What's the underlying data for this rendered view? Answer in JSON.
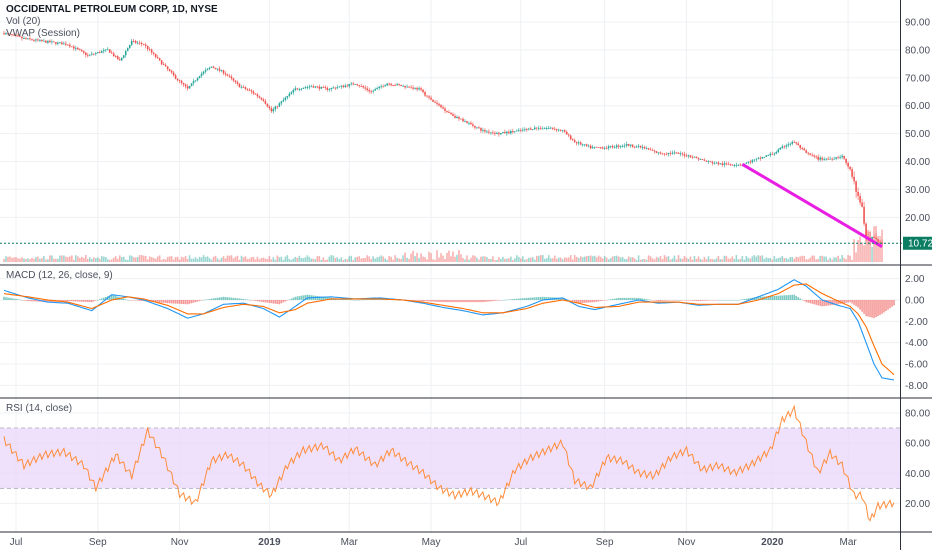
{
  "colors": {
    "up": "#26a69a",
    "down": "#ef5350",
    "macd": "#2196f3",
    "signal": "#ff6d00",
    "rsi": "#ff8c3a",
    "trendline": "#e91ee3",
    "rsi_band": "#ead7fb",
    "price_tag": "#0a7d63"
  },
  "chart_data": [
    {
      "type": "candlestick",
      "title": "OCCIDENTAL PETROLEUM CORP, 1D, NYSE",
      "indicators": [
        "Vol (20)",
        "VWAP (Session)"
      ],
      "y_ticks": [
        "90.00",
        "80.00",
        "70.00",
        "60.00",
        "50.00",
        "40.00",
        "30.00",
        "20.00"
      ],
      "ylim": [
        4,
        95
      ],
      "last_price": "10.72",
      "x_ticks": [
        "Jul",
        "Sep",
        "Nov",
        "2019",
        "Mar",
        "May",
        "Jul",
        "Sep",
        "Nov",
        "2020",
        "Mar"
      ],
      "x_tick_index": [
        6,
        47,
        88,
        133,
        173,
        214,
        259,
        301,
        342,
        385,
        423
      ],
      "n_days": 440,
      "close_anchors": [
        [
          0,
          86
        ],
        [
          10,
          84
        ],
        [
          20,
          83
        ],
        [
          32,
          82
        ],
        [
          42,
          78
        ],
        [
          52,
          80
        ],
        [
          58,
          76
        ],
        [
          64,
          83
        ],
        [
          70,
          82
        ],
        [
          78,
          76
        ],
        [
          86,
          70
        ],
        [
          92,
          66
        ],
        [
          98,
          71
        ],
        [
          104,
          74
        ],
        [
          110,
          72
        ],
        [
          118,
          67
        ],
        [
          124,
          65
        ],
        [
          130,
          62
        ],
        [
          134,
          58
        ],
        [
          140,
          62
        ],
        [
          146,
          66
        ],
        [
          154,
          67
        ],
        [
          162,
          66
        ],
        [
          170,
          67
        ],
        [
          176,
          68
        ],
        [
          184,
          65
        ],
        [
          192,
          68
        ],
        [
          200,
          67
        ],
        [
          208,
          66
        ],
        [
          214,
          62
        ],
        [
          220,
          59
        ],
        [
          226,
          56
        ],
        [
          232,
          54
        ],
        [
          240,
          51
        ],
        [
          248,
          50
        ],
        [
          258,
          51
        ],
        [
          266,
          52
        ],
        [
          274,
          52
        ],
        [
          280,
          51
        ],
        [
          286,
          47
        ],
        [
          294,
          45
        ],
        [
          302,
          45
        ],
        [
          312,
          46
        ],
        [
          320,
          45
        ],
        [
          328,
          43
        ],
        [
          336,
          43
        ],
        [
          344,
          42
        ],
        [
          352,
          40
        ],
        [
          360,
          39
        ],
        [
          370,
          39
        ],
        [
          378,
          41
        ],
        [
          386,
          43
        ],
        [
          392,
          46
        ],
        [
          396,
          47
        ],
        [
          402,
          43
        ],
        [
          408,
          41
        ],
        [
          414,
          41
        ],
        [
          420,
          42
        ],
        [
          424,
          37
        ],
        [
          427,
          30
        ],
        [
          430,
          24
        ],
        [
          432,
          13
        ],
        [
          436,
          12
        ],
        [
          440,
          10.7
        ]
      ],
      "trendline": [
        [
          370,
          39
        ],
        [
          440,
          9.5
        ]
      ]
    },
    {
      "type": "line",
      "title": "MACD (12, 26, close, 9)",
      "y_ticks": [
        "2.00",
        "0.00",
        "-2.00",
        "-4.00",
        "-6.00",
        "-8.00"
      ],
      "ylim": [
        -9,
        3
      ],
      "macd_anchors": [
        [
          0,
          0.9
        ],
        [
          12,
          0.2
        ],
        [
          22,
          -0.2
        ],
        [
          32,
          -0.3
        ],
        [
          44,
          -1.0
        ],
        [
          54,
          0.5
        ],
        [
          62,
          0.3
        ],
        [
          70,
          0.0
        ],
        [
          82,
          -0.8
        ],
        [
          92,
          -1.7
        ],
        [
          100,
          -1.3
        ],
        [
          110,
          -0.4
        ],
        [
          120,
          -0.3
        ],
        [
          130,
          -0.8
        ],
        [
          138,
          -1.6
        ],
        [
          146,
          -0.6
        ],
        [
          152,
          0.2
        ],
        [
          164,
          0.3
        ],
        [
          176,
          0.1
        ],
        [
          188,
          0.2
        ],
        [
          200,
          0.0
        ],
        [
          210,
          -0.3
        ],
        [
          220,
          -0.7
        ],
        [
          230,
          -1.0
        ],
        [
          240,
          -1.4
        ],
        [
          250,
          -1.2
        ],
        [
          262,
          -0.6
        ],
        [
          270,
          0.0
        ],
        [
          280,
          0.2
        ],
        [
          288,
          -0.6
        ],
        [
          296,
          -0.9
        ],
        [
          308,
          -0.4
        ],
        [
          318,
          0.0
        ],
        [
          328,
          -0.3
        ],
        [
          338,
          -0.2
        ],
        [
          348,
          -0.5
        ],
        [
          358,
          -0.4
        ],
        [
          368,
          -0.4
        ],
        [
          378,
          0.3
        ],
        [
          388,
          1.0
        ],
        [
          396,
          1.9
        ],
        [
          402,
          1.3
        ],
        [
          410,
          0.0
        ],
        [
          418,
          -0.5
        ],
        [
          424,
          -0.8
        ],
        [
          428,
          -2.0
        ],
        [
          432,
          -4.0
        ],
        [
          436,
          -6.0
        ],
        [
          440,
          -7.3
        ],
        [
          446,
          -7.5
        ]
      ],
      "signal_anchors": [
        [
          0,
          0.6
        ],
        [
          12,
          0.3
        ],
        [
          22,
          0.0
        ],
        [
          32,
          -0.2
        ],
        [
          44,
          -0.8
        ],
        [
          54,
          0.0
        ],
        [
          62,
          0.3
        ],
        [
          70,
          0.1
        ],
        [
          82,
          -0.5
        ],
        [
          92,
          -1.3
        ],
        [
          100,
          -1.3
        ],
        [
          110,
          -0.7
        ],
        [
          120,
          -0.4
        ],
        [
          130,
          -0.6
        ],
        [
          138,
          -1.2
        ],
        [
          146,
          -0.9
        ],
        [
          152,
          -0.3
        ],
        [
          164,
          0.1
        ],
        [
          176,
          0.1
        ],
        [
          188,
          0.1
        ],
        [
          200,
          0.0
        ],
        [
          210,
          -0.2
        ],
        [
          220,
          -0.5
        ],
        [
          230,
          -0.8
        ],
        [
          240,
          -1.2
        ],
        [
          250,
          -1.2
        ],
        [
          262,
          -0.8
        ],
        [
          270,
          -0.3
        ],
        [
          280,
          0.0
        ],
        [
          288,
          -0.3
        ],
        [
          296,
          -0.7
        ],
        [
          308,
          -0.6
        ],
        [
          318,
          -0.2
        ],
        [
          328,
          -0.2
        ],
        [
          338,
          -0.2
        ],
        [
          348,
          -0.4
        ],
        [
          358,
          -0.4
        ],
        [
          368,
          -0.4
        ],
        [
          378,
          0.0
        ],
        [
          388,
          0.6
        ],
        [
          396,
          1.4
        ],
        [
          402,
          1.5
        ],
        [
          410,
          0.6
        ],
        [
          418,
          -0.1
        ],
        [
          424,
          -0.6
        ],
        [
          428,
          -1.3
        ],
        [
          432,
          -2.5
        ],
        [
          436,
          -4.3
        ],
        [
          440,
          -6.0
        ],
        [
          446,
          -7.0
        ]
      ]
    },
    {
      "type": "line",
      "title": "RSI (14, close)",
      "y_ticks": [
        "80.00",
        "60.00",
        "40.00",
        "20.00"
      ],
      "ylim": [
        3,
        88
      ],
      "band": [
        30,
        70
      ],
      "rsi_anchors": [
        [
          0,
          62
        ],
        [
          10,
          45
        ],
        [
          20,
          52
        ],
        [
          30,
          54
        ],
        [
          40,
          45
        ],
        [
          46,
          30
        ],
        [
          56,
          52
        ],
        [
          64,
          38
        ],
        [
          72,
          68
        ],
        [
          80,
          50
        ],
        [
          88,
          26
        ],
        [
          96,
          20
        ],
        [
          104,
          48
        ],
        [
          112,
          52
        ],
        [
          120,
          45
        ],
        [
          128,
          32
        ],
        [
          134,
          25
        ],
        [
          142,
          45
        ],
        [
          150,
          55
        ],
        [
          160,
          58
        ],
        [
          168,
          48
        ],
        [
          176,
          56
        ],
        [
          186,
          45
        ],
        [
          194,
          55
        ],
        [
          202,
          47
        ],
        [
          210,
          40
        ],
        [
          218,
          30
        ],
        [
          226,
          25
        ],
        [
          234,
          28
        ],
        [
          240,
          25
        ],
        [
          248,
          20
        ],
        [
          256,
          42
        ],
        [
          264,
          50
        ],
        [
          272,
          55
        ],
        [
          280,
          60
        ],
        [
          286,
          35
        ],
        [
          294,
          30
        ],
        [
          302,
          50
        ],
        [
          310,
          48
        ],
        [
          318,
          40
        ],
        [
          326,
          38
        ],
        [
          334,
          50
        ],
        [
          342,
          55
        ],
        [
          350,
          42
        ],
        [
          358,
          45
        ],
        [
          366,
          40
        ],
        [
          374,
          45
        ],
        [
          384,
          55
        ],
        [
          390,
          75
        ],
        [
          396,
          82
        ],
        [
          402,
          60
        ],
        [
          408,
          40
        ],
        [
          414,
          53
        ],
        [
          420,
          45
        ],
        [
          426,
          25
        ],
        [
          430,
          25
        ],
        [
          434,
          8
        ],
        [
          438,
          18
        ],
        [
          446,
          20
        ]
      ]
    }
  ]
}
